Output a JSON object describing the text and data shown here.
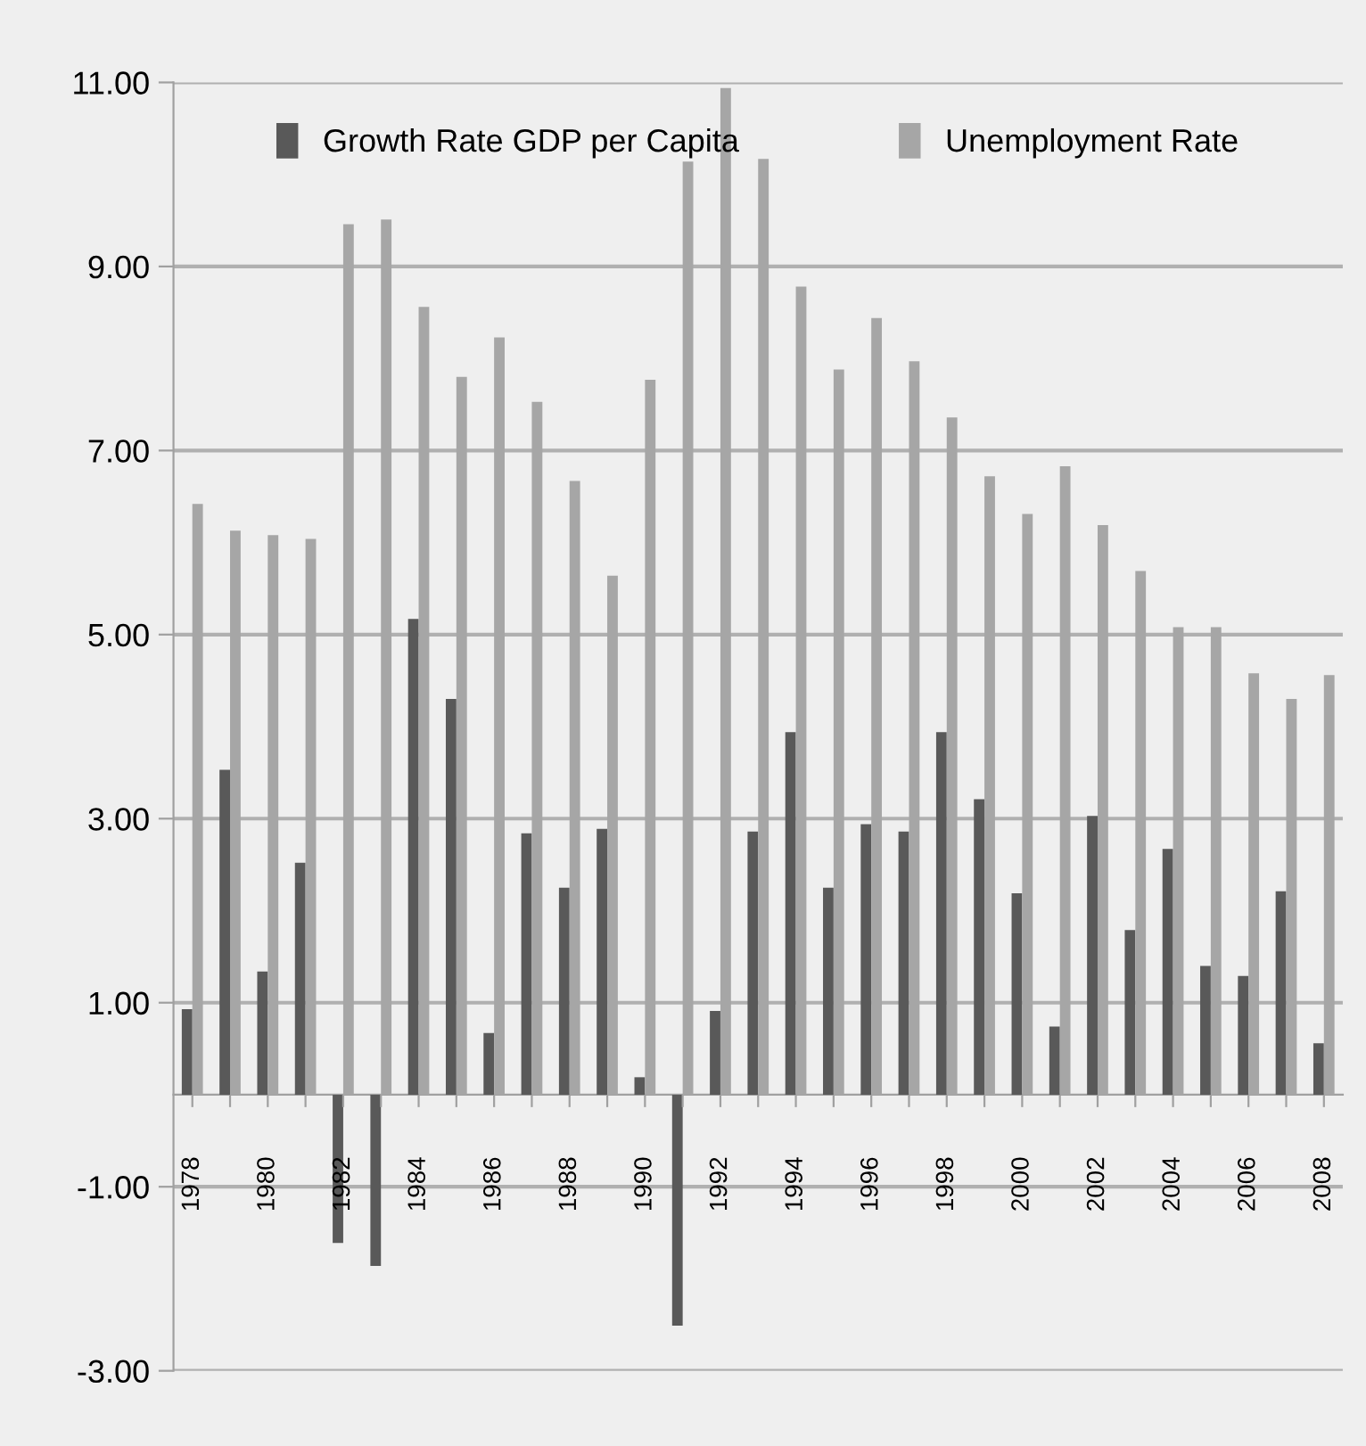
{
  "chart_data": {
    "type": "bar",
    "categories": [
      "1978",
      null,
      "1980",
      null,
      "1982",
      null,
      "1984",
      null,
      "1986",
      null,
      "1988",
      null,
      "1990",
      null,
      "1992",
      null,
      "1994",
      null,
      "1996",
      null,
      "1998",
      null,
      "2000",
      null,
      "2002",
      null,
      "2004",
      null,
      "2006",
      null,
      "2008"
    ],
    "series": [
      {
        "name": "Growth Rate GDP per Capita",
        "color": "#595959",
        "values": [
          0.93,
          3.53,
          1.34,
          2.52,
          -1.61,
          -1.86,
          5.17,
          4.3,
          0.67,
          2.84,
          2.25,
          2.89,
          0.19,
          -2.51,
          0.91,
          2.86,
          3.94,
          2.25,
          2.94,
          2.86,
          3.94,
          3.21,
          2.19,
          0.74,
          3.03,
          1.79,
          2.67,
          1.4,
          1.29,
          2.21,
          0.56
        ]
      },
      {
        "name": "Unemployment Rate",
        "color": "#a6a6a6",
        "values": [
          6.42,
          6.13,
          6.08,
          6.04,
          9.46,
          9.51,
          8.56,
          7.8,
          8.23,
          7.53,
          6.67,
          5.64,
          7.77,
          10.14,
          10.94,
          10.17,
          8.78,
          7.88,
          8.44,
          7.97,
          7.36,
          6.72,
          6.31,
          6.83,
          6.19,
          5.69,
          5.08,
          5.08,
          4.58,
          4.3,
          4.56
        ]
      }
    ],
    "ylim": [
      -3,
      11
    ],
    "yticks": [
      {
        "value": -3,
        "label": "-3.00"
      },
      {
        "value": -1,
        "label": "-1.00"
      },
      {
        "value": 1,
        "label": "1.00"
      },
      {
        "value": 3,
        "label": "3.00"
      },
      {
        "value": 5,
        "label": "5.00"
      },
      {
        "value": 7,
        "label": "7.00"
      },
      {
        "value": 9,
        "label": "9.00"
      },
      {
        "value": 11,
        "label": "11.00"
      }
    ],
    "grid": "y",
    "legend": "top"
  }
}
